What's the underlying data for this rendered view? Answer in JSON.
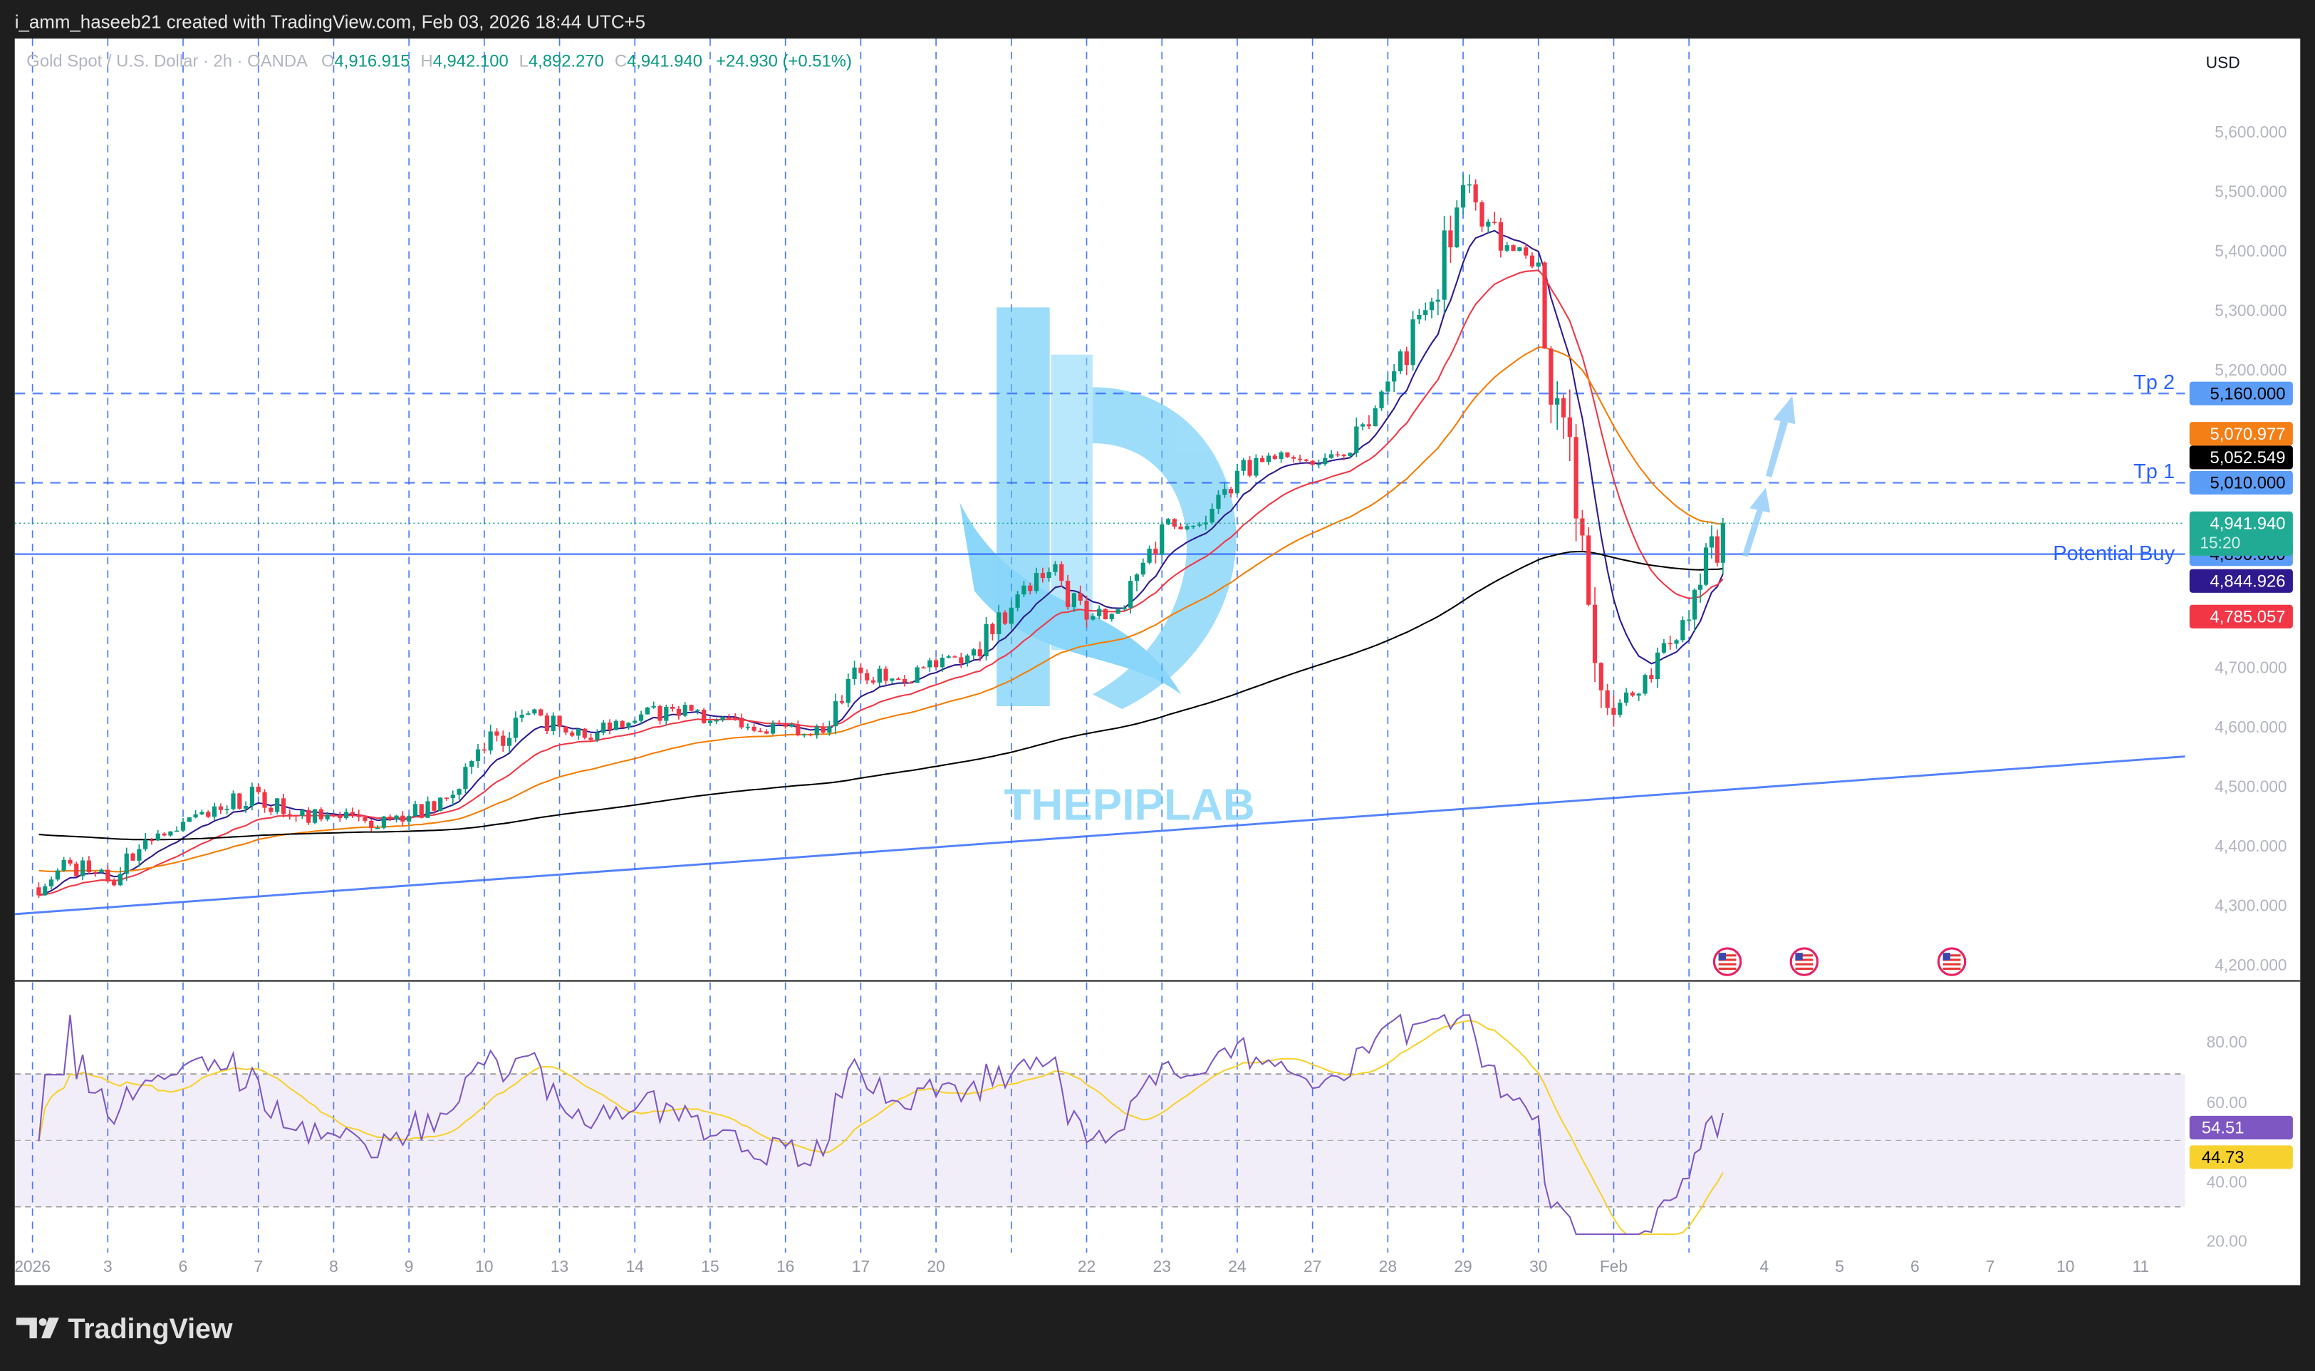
{
  "top_bar": {
    "caption": "i_amm_haseeb21 created with TradingView.com, Feb 03, 2026 18:44 UTC+5"
  },
  "legend": {
    "symbol": "Gold Spot / U.S. Dollar · 2h · OANDA",
    "o_label": "O",
    "o_value": "4,916.915",
    "h_label": "H",
    "h_value": "4,942.100",
    "l_label": "L",
    "l_value": "4,892.270",
    "c_label": "C",
    "c_value": "4,941.940",
    "change": "+24.930 (+0.51%)"
  },
  "currency": "USD",
  "footer": {
    "brand": "TradingView"
  },
  "watermark": {
    "text": "THEPIPLAB"
  },
  "colors": {
    "up": "#089981",
    "down": "#f23645",
    "ema_fast": "#2e1a8e",
    "ema_mid": "#f23645",
    "ema_slow": "#f57c00",
    "ema_long": "#000000",
    "levels": "#2962ff",
    "rsi": "#7e57c2",
    "rsi_ma": "#f7d12e"
  },
  "chart_data": {
    "type": "candlestick",
    "title": "",
    "ylim": [
      4150,
      5650
    ],
    "y_ticks": [
      "5,600.000",
      "5,500.000",
      "5,400.000",
      "5,300.000",
      "5,200.000",
      "4,700.000",
      "4,600.000",
      "4,500.000",
      "4,400.000",
      "4,300.000",
      "4,200.000"
    ],
    "y_tick_values": [
      5600,
      5500,
      5400,
      5300,
      5200,
      4700,
      4600,
      4500,
      4400,
      4300,
      4200
    ],
    "x_ticks": [
      "2026",
      "3",
      "6",
      "7",
      "8",
      "9",
      "10",
      "13",
      "14",
      "15",
      "16",
      "17",
      "20",
      "",
      "22",
      "23",
      "24",
      "27",
      "28",
      "29",
      "30",
      "Feb",
      "",
      "4",
      "5",
      "6",
      "7",
      "10",
      "11"
    ],
    "close_path": [
      {
        "t": "Jan 1 00:00",
        "close": 4330
      },
      {
        "t": "Jan 1 12:00",
        "close": 4370
      },
      {
        "t": "Jan 3 00:00",
        "close": 4340
      },
      {
        "t": "Jan 3 12:00",
        "close": 4410
      },
      {
        "t": "Jan 6 00:00",
        "close": 4440
      },
      {
        "t": "Jan 6 12:00",
        "close": 4460
      },
      {
        "t": "Jan 7 00:00",
        "close": 4490
      },
      {
        "t": "Jan 7 12:00",
        "close": 4450
      },
      {
        "t": "Jan 8 00:00",
        "close": 4450
      },
      {
        "t": "Jan 8 12:00",
        "close": 4430
      },
      {
        "t": "Jan 9 00:00",
        "close": 4450
      },
      {
        "t": "Jan 9 12:00",
        "close": 4480
      },
      {
        "t": "Jan 10 00:00",
        "close": 4560
      },
      {
        "t": "Jan 10 12:00",
        "close": 4620
      },
      {
        "t": "Jan 13 00:00",
        "close": 4600
      },
      {
        "t": "Jan 13 12:00",
        "close": 4590
      },
      {
        "t": "Jan 14 00:00",
        "close": 4610
      },
      {
        "t": "Jan 14 12:00",
        "close": 4630
      },
      {
        "t": "Jan 15 00:00",
        "close": 4610
      },
      {
        "t": "Jan 15 12:00",
        "close": 4600
      },
      {
        "t": "Jan 16 00:00",
        "close": 4600
      },
      {
        "t": "Jan 16 12:00",
        "close": 4590
      },
      {
        "t": "Jan 17 00:00",
        "close": 4690
      },
      {
        "t": "Jan 17 12:00",
        "close": 4680
      },
      {
        "t": "Jan 20 00:00",
        "close": 4700
      },
      {
        "t": "Jan 20 12:00",
        "close": 4730
      },
      {
        "t": "Jan 21 00:00",
        "close": 4800
      },
      {
        "t": "Jan 21 12:00",
        "close": 4860
      },
      {
        "t": "Jan 22 00:00",
        "close": 4780
      },
      {
        "t": "Jan 22 12:00",
        "close": 4800
      },
      {
        "t": "Jan 23 00:00",
        "close": 4940
      },
      {
        "t": "Jan 23 12:00",
        "close": 4940
      },
      {
        "t": "Jan 24 00:00",
        "close": 5030
      },
      {
        "t": "Jan 24 12:00",
        "close": 5050
      },
      {
        "t": "Jan 27 00:00",
        "close": 5040
      },
      {
        "t": "Jan 27 12:00",
        "close": 5060
      },
      {
        "t": "Jan 28 00:00",
        "close": 5180
      },
      {
        "t": "Jan 28 12:00",
        "close": 5300
      },
      {
        "t": "Jan 29 00:00",
        "close": 5510
      },
      {
        "t": "Jan 29 12:00",
        "close": 5400
      },
      {
        "t": "Jan 30 00:00",
        "close": 5380
      },
      {
        "t": "Jan 30 12:00",
        "close": 4950
      },
      {
        "t": "Feb 2 00:00",
        "close": 4620
      },
      {
        "t": "Feb 2 12:00",
        "close": 4680
      },
      {
        "t": "Feb 3 00:00",
        "close": 4780
      },
      {
        "t": "Feb 3 14:00",
        "close": 4941.94
      }
    ],
    "trendline": {
      "start": 4285,
      "end": 4550
    },
    "levels": [
      {
        "label": "Tp 2",
        "price": 5160,
        "style": "dashed"
      },
      {
        "label": "Tp 1",
        "price": 5010,
        "style": "dashed"
      },
      {
        "label": "Potential Buy",
        "price": 4890,
        "style": "solid"
      }
    ],
    "price_badges": [
      {
        "value": "5,160.000",
        "price": 5160,
        "bg": "#5b9cf6",
        "fg": "#000000"
      },
      {
        "value": "5,070.977",
        "price": 5070.977,
        "bg": "#f57f17",
        "fg": "#ffffff"
      },
      {
        "value": "5,052.549",
        "price": 5052.549,
        "bg": "#000000",
        "fg": "#ffffff"
      },
      {
        "value": "5,010.000",
        "price": 5010,
        "bg": "#5b9cf6",
        "fg": "#000000"
      },
      {
        "value": "4,890.000",
        "price": 4890,
        "bg": "#5b9cf6",
        "fg": "#000000"
      },
      {
        "value": "4,844.926",
        "price": 4844.926,
        "bg": "#2e1a8e",
        "fg": "#ffffff"
      },
      {
        "value": "4,785.057",
        "price": 4785.057,
        "bg": "#f23645",
        "fg": "#ffffff"
      }
    ],
    "last_price": {
      "value": "4,941.940",
      "countdown": "15:20",
      "bg": "#22ab94"
    },
    "rsi": {
      "ylim": [
        20,
        85
      ],
      "ticks": [
        "80.00",
        "60.00",
        "40.00",
        "20.00"
      ],
      "tick_values": [
        80,
        60,
        40,
        20
      ],
      "band": [
        30,
        70
      ],
      "value": "54.51",
      "ma_value": "44.73"
    }
  }
}
